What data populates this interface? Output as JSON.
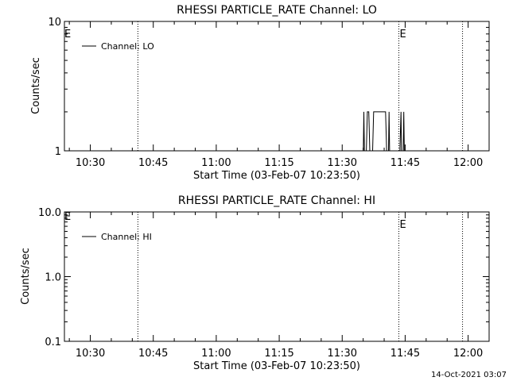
{
  "chart_data": [
    {
      "type": "line",
      "title": "RHESSI PARTICLE_RATE Channel: LO",
      "xlabel": "Start Time (03-Feb-07 10:23:50)",
      "ylabel": "Counts/sec",
      "yscale": "log",
      "ylim": [
        1,
        10
      ],
      "y_ticks": [
        "1",
        "10"
      ],
      "xlim": [
        "10:23:50",
        "12:05:00"
      ],
      "x_ticks": [
        "10:30",
        "10:45",
        "11:00",
        "11:15",
        "11:30",
        "11:45",
        "12:00"
      ],
      "grid": false,
      "legend": {
        "position": "top-left",
        "entries": [
          "Channel: LO"
        ]
      },
      "vlines": [
        {
          "x": "10:41:20",
          "style": "dotted",
          "label": ""
        },
        {
          "x": "11:43:30",
          "style": "dotted",
          "label": "E"
        },
        {
          "x": "11:58:40",
          "style": "dotted",
          "label": ""
        }
      ],
      "edge_label_left": "E",
      "series": [
        {
          "name": "Channel: LO",
          "points": [
            [
              "11:35:00",
              0.8
            ],
            [
              "11:35:10",
              2
            ],
            [
              "11:35:20",
              0.8
            ],
            [
              "11:35:40",
              0.8
            ],
            [
              "11:36:00",
              2
            ],
            [
              "11:36:20",
              2
            ],
            [
              "11:36:40",
              0.8
            ],
            [
              "11:37:10",
              0.8
            ],
            [
              "11:37:30",
              2
            ],
            [
              "11:38:00",
              2
            ],
            [
              "11:40:20",
              2
            ],
            [
              "11:40:40",
              0.8
            ],
            [
              "11:41:00",
              0.8
            ],
            [
              "11:41:10",
              2
            ],
            [
              "11:41:20",
              0.8
            ],
            [
              "11:43:40",
              0.8
            ],
            [
              "11:44:00",
              2
            ],
            [
              "11:44:10",
              0.8
            ],
            [
              "11:44:30",
              0.8
            ],
            [
              "11:44:40",
              2
            ],
            [
              "11:44:50",
              0.8
            ]
          ]
        }
      ]
    },
    {
      "type": "line",
      "title": "RHESSI PARTICLE_RATE Channel: HI",
      "xlabel": "Start Time (03-Feb-07 10:23:50)",
      "ylabel": "Counts/sec",
      "yscale": "log",
      "ylim": [
        0.1,
        10
      ],
      "y_ticks": [
        "0.1",
        "1.0",
        "10.0"
      ],
      "xlim": [
        "10:23:50",
        "12:05:00"
      ],
      "x_ticks": [
        "10:30",
        "10:45",
        "11:00",
        "11:15",
        "11:30",
        "11:45",
        "12:00"
      ],
      "grid": false,
      "legend": {
        "position": "top-left",
        "entries": [
          "Channel: HI"
        ]
      },
      "vlines": [
        {
          "x": "10:41:20",
          "style": "dotted",
          "label": ""
        },
        {
          "x": "11:43:30",
          "style": "dotted",
          "label": "E"
        },
        {
          "x": "11:58:40",
          "style": "dotted",
          "label": ""
        }
      ],
      "edge_label_left": "E",
      "series": [
        {
          "name": "Channel: HI",
          "points": []
        }
      ]
    }
  ],
  "footer": {
    "timestamp": "14-Oct-2021 03:07"
  }
}
